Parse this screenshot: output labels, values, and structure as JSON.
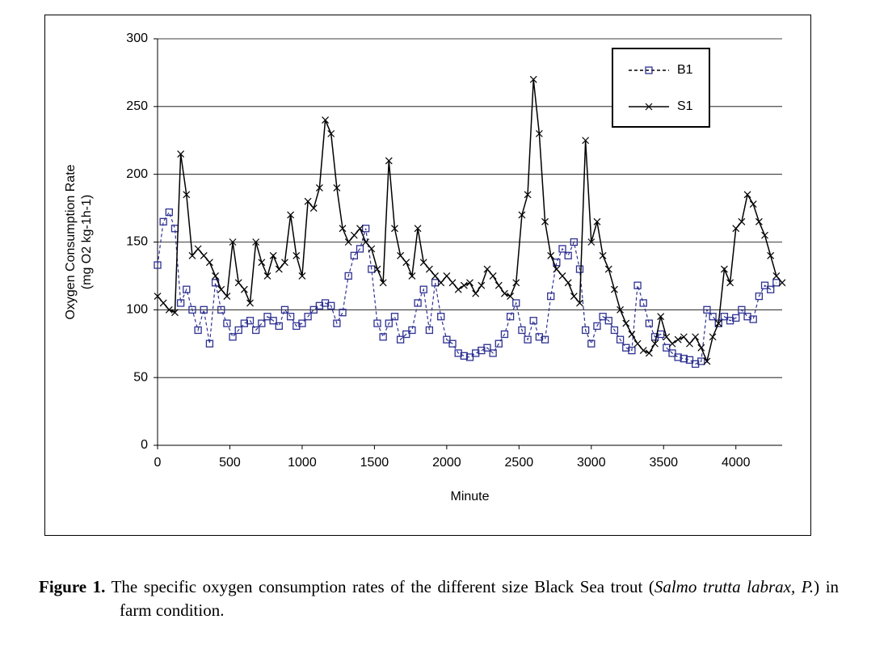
{
  "chart_data": {
    "type": "line",
    "x_label": "Minute",
    "y_label": [
      "Oxygen Consumption Rate",
      "(mg O2 kg-1h-1)"
    ],
    "xlim": [
      0,
      4320
    ],
    "ylim": [
      0,
      300
    ],
    "xticks": [
      0,
      500,
      1000,
      1500,
      2000,
      2500,
      3000,
      3500,
      4000
    ],
    "yticks": [
      0,
      50,
      100,
      150,
      200,
      250,
      300
    ],
    "grid": true,
    "legend": "upper right",
    "x": [
      0,
      40,
      80,
      120,
      160,
      200,
      240,
      280,
      320,
      360,
      400,
      440,
      480,
      520,
      560,
      600,
      640,
      680,
      720,
      760,
      800,
      840,
      880,
      920,
      960,
      1000,
      1040,
      1080,
      1120,
      1160,
      1200,
      1240,
      1280,
      1320,
      1360,
      1400,
      1440,
      1480,
      1520,
      1560,
      1600,
      1640,
      1680,
      1720,
      1760,
      1800,
      1840,
      1880,
      1920,
      1960,
      2000,
      2040,
      2080,
      2120,
      2160,
      2200,
      2240,
      2280,
      2320,
      2360,
      2400,
      2440,
      2480,
      2520,
      2560,
      2600,
      2640,
      2680,
      2720,
      2760,
      2800,
      2840,
      2880,
      2920,
      2960,
      3000,
      3040,
      3080,
      3120,
      3160,
      3200,
      3240,
      3280,
      3320,
      3360,
      3400,
      3440,
      3480,
      3520,
      3560,
      3600,
      3640,
      3680,
      3720,
      3760,
      3800,
      3840,
      3880,
      3920,
      3960,
      4000,
      4040,
      4080,
      4120,
      4160,
      4200,
      4240,
      4280,
      4320
    ],
    "series": [
      {
        "name": "B1",
        "color": "#2e3192",
        "marker": "square",
        "dash": true,
        "values": [
          133,
          165,
          172,
          160,
          105,
          115,
          100,
          85,
          100,
          75,
          120,
          100,
          90,
          80,
          85,
          90,
          92,
          85,
          90,
          95,
          92,
          88,
          100,
          95,
          88,
          90,
          95,
          100,
          103,
          105,
          103,
          90,
          98,
          125,
          140,
          145,
          160,
          130,
          90,
          80,
          90,
          95,
          78,
          82,
          85,
          105,
          115,
          85,
          120,
          95,
          78,
          75,
          68,
          66,
          65,
          68,
          70,
          72,
          68,
          75,
          82,
          95,
          105,
          85,
          78,
          92,
          80,
          78,
          110,
          135,
          145,
          140,
          150,
          130,
          85,
          75,
          88,
          95,
          92,
          85,
          78,
          72,
          70,
          118,
          105,
          90,
          80,
          82,
          72,
          68,
          65,
          64,
          63,
          60,
          62,
          100,
          95,
          90,
          95,
          92,
          94,
          100,
          95,
          93,
          110,
          118,
          115,
          120,
          null
        ]
      },
      {
        "name": "S1",
        "color": "#000000",
        "marker": "x",
        "dash": false,
        "values": [
          110,
          105,
          100,
          98,
          215,
          185,
          140,
          145,
          140,
          135,
          125,
          115,
          110,
          150,
          120,
          115,
          105,
          150,
          135,
          125,
          140,
          130,
          135,
          170,
          140,
          125,
          180,
          175,
          190,
          240,
          230,
          190,
          160,
          150,
          155,
          160,
          150,
          145,
          130,
          120,
          210,
          160,
          140,
          135,
          125,
          160,
          135,
          130,
          125,
          120,
          125,
          120,
          115,
          118,
          120,
          112,
          118,
          130,
          125,
          118,
          112,
          110,
          120,
          170,
          185,
          270,
          230,
          165,
          140,
          130,
          125,
          120,
          110,
          105,
          225,
          150,
          165,
          140,
          130,
          115,
          100,
          90,
          82,
          75,
          70,
          68,
          75,
          95,
          80,
          75,
          78,
          80,
          75,
          80,
          72,
          62,
          80,
          90,
          130,
          120,
          160,
          165,
          185,
          178,
          165,
          155,
          140,
          125,
          120
        ]
      }
    ]
  },
  "caption": {
    "label": "Figure 1.",
    "text_1": "The specific oxygen consumption rates of the different size Black Sea trout (",
    "italic": "Salmo trutta labrax, P.",
    "text_2": ") in farm condition."
  }
}
